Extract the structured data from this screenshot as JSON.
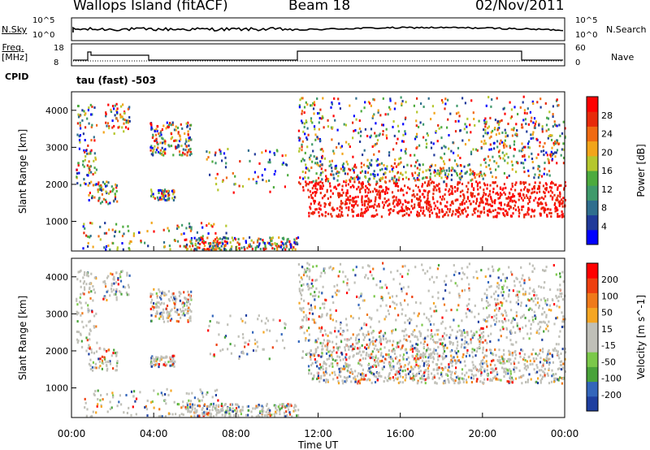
{
  "header": {
    "site": "Wallops Island (fitACF)",
    "beam": "Beam 18",
    "date": "02/Nov/2011"
  },
  "side_labels": {
    "nsky": "N.Sky",
    "nsearch": "N.Search",
    "freq_line1": "Freq.",
    "freq_line2": "[MHz]",
    "nave": "Nave",
    "cpid": "CPID",
    "cpid_value": "tau (fast) -503",
    "nsky_tick_top": "10^5",
    "nsky_tick_bottom": "10^0",
    "freq_tick_top": "18",
    "freq_tick_bottom": "8",
    "nave_tick_top": "60",
    "nave_tick_bottom": "0"
  },
  "chart_data": [
    {
      "type": "heatmap",
      "title": "",
      "ylabel": "Slant Range [km]",
      "ylim": [
        200,
        4500
      ],
      "yticks": [
        "1000",
        "2000",
        "3000",
        "4000"
      ],
      "colorbar_label": "Power [dB]",
      "colorbar_ticks": [
        "4",
        "8",
        "12",
        "16",
        "20",
        "24",
        "28"
      ],
      "colorbar_colors": [
        "#0000ff",
        "#203a9a",
        "#2f6e8e",
        "#3f9a6b",
        "#4dab3e",
        "#b5c72e",
        "#f2a51a",
        "#f06a12",
        "#e82a0a",
        "#ff0000"
      ]
    },
    {
      "type": "heatmap",
      "title": "",
      "ylabel": "Slant Range [km]",
      "ylim": [
        200,
        4500
      ],
      "yticks": [
        "1000",
        "2000",
        "3000",
        "4000"
      ],
      "colorbar_label": "Velocity [m s^-1]",
      "colorbar_ticks": [
        "200",
        "100",
        "50",
        "15",
        "-15",
        "-50",
        "-100",
        "-200"
      ],
      "colorbar_colors": [
        "#1e3fa0",
        "#3366bb",
        "#49a33a",
        "#7bc84a",
        "#c0c0b8",
        "#c0c0b8",
        "#f5a623",
        "#f07a1a",
        "#ee4010",
        "#ff0000"
      ]
    }
  ],
  "time_axis": {
    "label": "Time UT",
    "ticks": [
      "00:00",
      "04:00",
      "08:00",
      "12:00",
      "16:00",
      "20:00",
      "00:00"
    ]
  }
}
